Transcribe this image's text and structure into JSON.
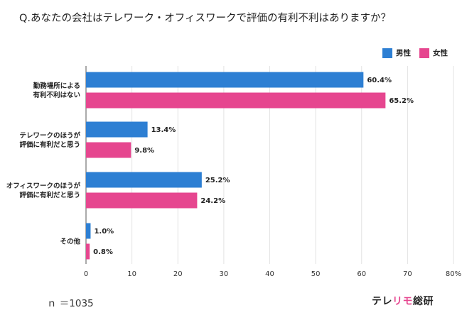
{
  "question": "Q.あなたの会社はテレワーク・オフィスワークで評価の有利不利はありますか？",
  "sample_note": "ｎ ＝1035",
  "brand": {
    "part1": "テレ",
    "part2": "リモ",
    "part3": "総研"
  },
  "colors": {
    "male": "#2d7fd3",
    "female": "#e6468f",
    "grid": "#e3e3e3",
    "axis": "#555555",
    "brand_accent": "#e6468f"
  },
  "chart_data": {
    "type": "bar",
    "orientation": "horizontal",
    "categories": [
      [
        "勤務場所による",
        "有利不利はない"
      ],
      [
        "テレワークのほうが",
        "評価に有利だと思う"
      ],
      [
        "オフィスワークのほうが",
        "評価に有利だと思う"
      ],
      [
        "その他"
      ]
    ],
    "series": [
      {
        "name": "男性",
        "values": [
          60.4,
          13.4,
          25.2,
          1.0
        ],
        "labels": [
          "60.4%",
          "13.4%",
          "25.2%",
          "1.0%"
        ]
      },
      {
        "name": "女性",
        "values": [
          65.2,
          9.8,
          24.2,
          0.8
        ],
        "labels": [
          "65.2%",
          "9.8%",
          "24.2%",
          "0.8%"
        ]
      }
    ],
    "xlim": [
      0,
      80
    ],
    "xticks": [
      "0",
      "10",
      "20",
      "30",
      "40",
      "50",
      "60",
      "70",
      "80%"
    ],
    "legend_position": "top-right",
    "grid": true
  }
}
